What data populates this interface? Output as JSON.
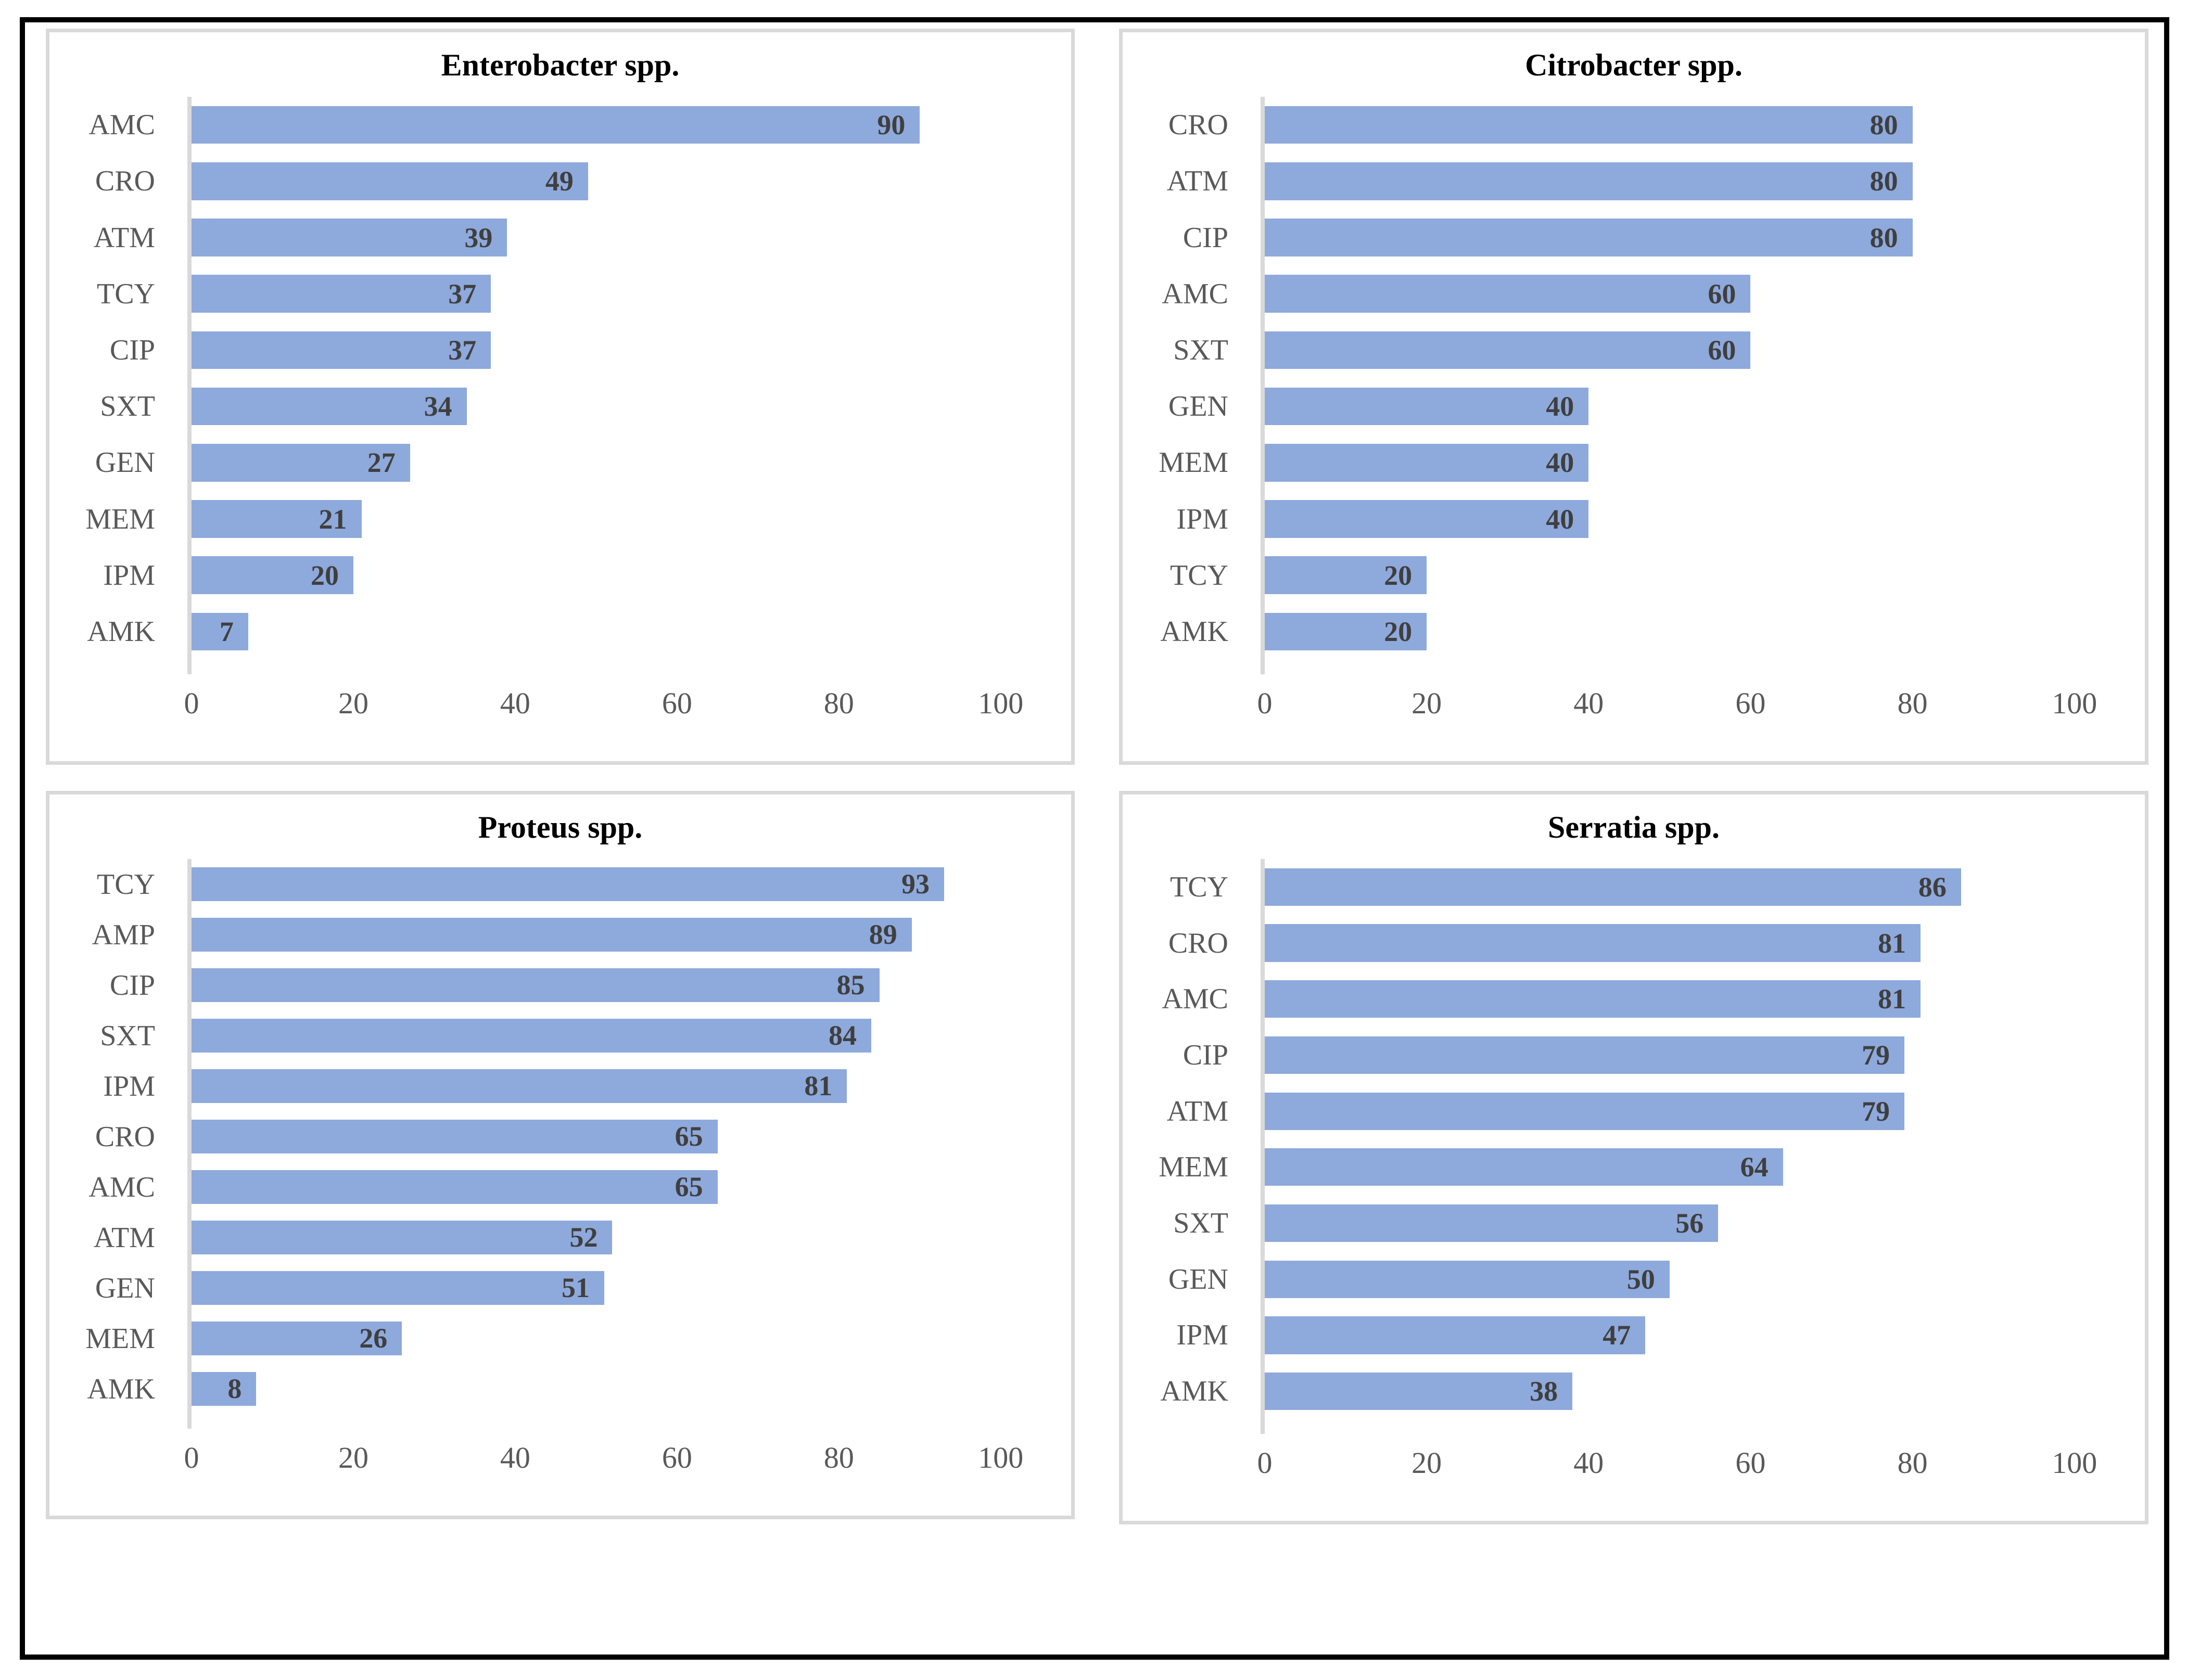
{
  "figure": {
    "bar_color": "#8ea9db",
    "value_label_color": "#3f3f3f",
    "axis_text_color": "#595959",
    "title_color": "#000000",
    "panel_border_color": "#d9d9d9",
    "outer_border_color": "#000000",
    "background_color": "#ffffff"
  },
  "chart_data": [
    {
      "type": "bar",
      "orientation": "horizontal",
      "title": "Enterobacter spp.",
      "categories": [
        "AMC",
        "CRO",
        "ATM",
        "TCY",
        "CIP",
        "SXT",
        "GEN",
        "MEM",
        "IPM",
        "AMK"
      ],
      "values": [
        90,
        49,
        39,
        37,
        37,
        34,
        27,
        21,
        20,
        7
      ],
      "xlabel": "",
      "ylabel": "",
      "xlim": [
        0,
        100
      ],
      "xticks": [
        0,
        20,
        40,
        60,
        80,
        100
      ],
      "grid": false,
      "legend": false,
      "value_labels": "inside-end"
    },
    {
      "type": "bar",
      "orientation": "horizontal",
      "title": "Citrobacter spp.",
      "categories": [
        "CRO",
        "ATM",
        "CIP",
        "AMC",
        "SXT",
        "GEN",
        "MEM",
        "IPM",
        "TCY",
        "AMK"
      ],
      "values": [
        80,
        80,
        80,
        60,
        60,
        40,
        40,
        40,
        20,
        20
      ],
      "xlabel": "",
      "ylabel": "",
      "xlim": [
        0,
        100
      ],
      "xticks": [
        0,
        20,
        40,
        60,
        80,
        100
      ],
      "grid": false,
      "legend": false,
      "value_labels": "inside-end"
    },
    {
      "type": "bar",
      "orientation": "horizontal",
      "title": "Proteus spp.",
      "categories": [
        "TCY",
        "AMP",
        "CIP",
        "SXT",
        "IPM",
        "CRO",
        "AMC",
        "ATM",
        "GEN",
        "MEM",
        "AMK"
      ],
      "values": [
        93,
        89,
        85,
        84,
        81,
        65,
        65,
        52,
        51,
        26,
        8
      ],
      "xlabel": "",
      "ylabel": "",
      "xlim": [
        0,
        100
      ],
      "xticks": [
        0,
        20,
        40,
        60,
        80,
        100
      ],
      "grid": false,
      "legend": false,
      "value_labels": "inside-end"
    },
    {
      "type": "bar",
      "orientation": "horizontal",
      "title": "Serratia spp.",
      "categories": [
        "TCY",
        "CRO",
        "AMC",
        "CIP",
        "ATM",
        "MEM",
        "SXT",
        "GEN",
        "IPM",
        "AMK"
      ],
      "values": [
        86,
        81,
        81,
        79,
        79,
        64,
        56,
        50,
        47,
        38
      ],
      "xlabel": "",
      "ylabel": "",
      "xlim": [
        0,
        100
      ],
      "xticks": [
        0,
        20,
        40,
        60,
        80,
        100
      ],
      "grid": false,
      "legend": false,
      "value_labels": "inside-end"
    }
  ]
}
